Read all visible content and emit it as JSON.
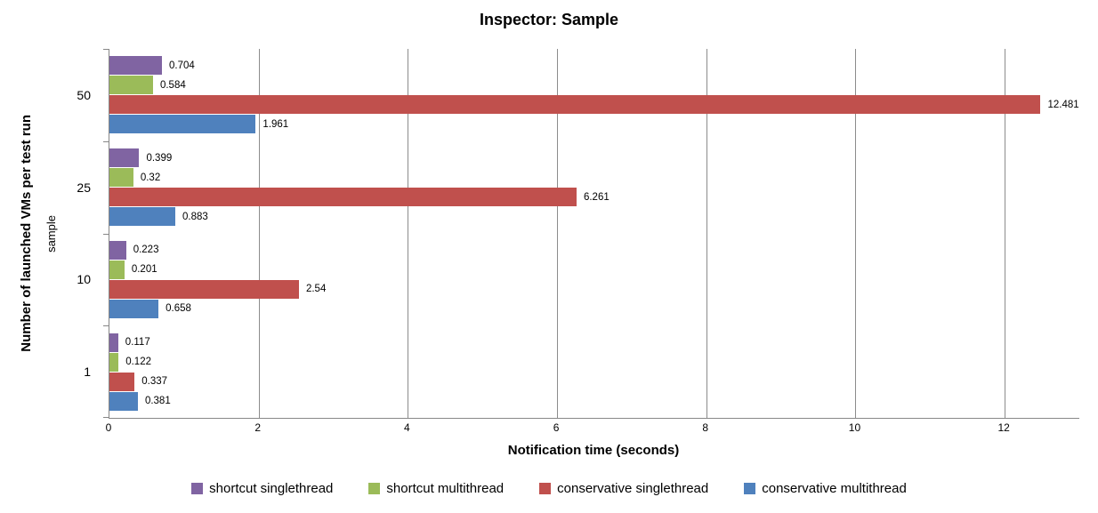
{
  "chart_data": {
    "type": "bar",
    "orientation": "horizontal",
    "title": "Inspector: Sample",
    "xlabel": "Notification time (seconds)",
    "ylabel": "Number of launched VMs per test run",
    "ylabel_secondary": "sample",
    "categories": [
      "50",
      "25",
      "10",
      "1"
    ],
    "series": [
      {
        "name": "shortcut singlethread",
        "color": "#8064A2",
        "values": [
          0.704,
          0.399,
          0.223,
          0.117
        ]
      },
      {
        "name": "shortcut multithread",
        "color": "#9BBB59",
        "values": [
          0.584,
          0.32,
          0.201,
          0.122
        ]
      },
      {
        "name": "conservative singlethread",
        "color": "#C0504D",
        "values": [
          12.481,
          6.261,
          2.54,
          0.337
        ]
      },
      {
        "name": "conservative multithread",
        "color": "#4F81BD",
        "values": [
          1.961,
          0.883,
          0.658,
          0.381
        ]
      }
    ],
    "xlim": [
      0,
      13
    ],
    "xticks": [
      0,
      2,
      4,
      6,
      8,
      10,
      12
    ],
    "grid": true,
    "value_labels": true,
    "legend_position": "bottom",
    "axis_color": "#878787",
    "gridline_color": "#8c8c8c"
  }
}
